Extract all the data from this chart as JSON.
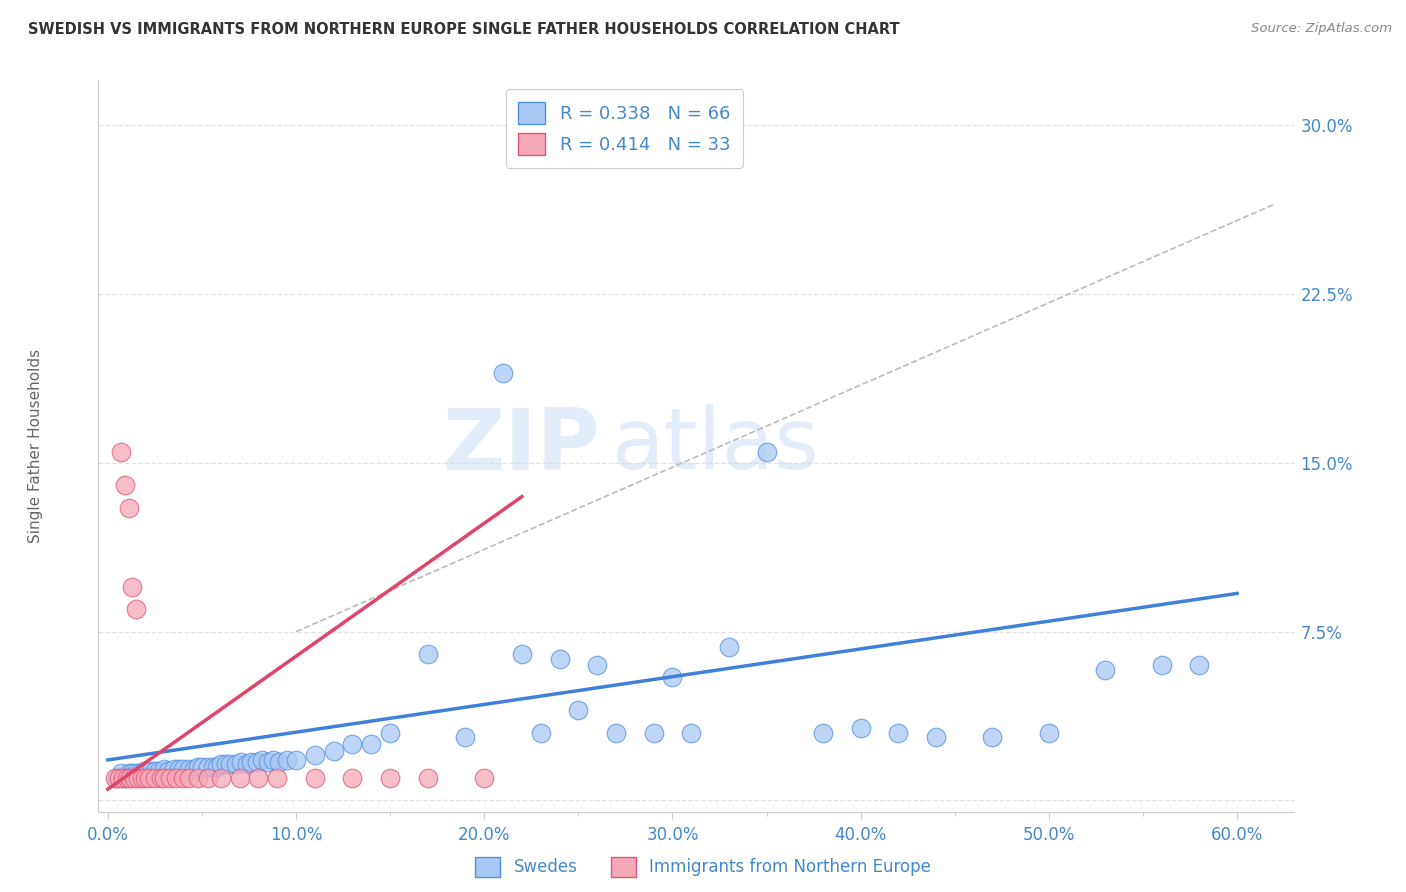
{
  "title": "SWEDISH VS IMMIGRANTS FROM NORTHERN EUROPE SINGLE FATHER HOUSEHOLDS CORRELATION CHART",
  "source": "Source: ZipAtlas.com",
  "ylabel_label": "Single Father Households",
  "xlim": [
    -0.005,
    0.63
  ],
  "ylim": [
    -0.005,
    0.32
  ],
  "yticks": [
    0.0,
    0.075,
    0.15,
    0.225,
    0.3
  ],
  "xticks": [
    0.0,
    0.1,
    0.2,
    0.3,
    0.4,
    0.5,
    0.6
  ],
  "ytick_labels": [
    "",
    "7.5%",
    "15.0%",
    "22.5%",
    "30.0%"
  ],
  "xtick_labels": [
    "0.0%",
    "10.0%",
    "20.0%",
    "30.0%",
    "40.0%",
    "50.0%",
    "60.0%"
  ],
  "blue_R": "0.338",
  "blue_N": "66",
  "pink_R": "0.414",
  "pink_N": "33",
  "legend_labels": [
    "Swedes",
    "Immigrants from Northern Europe"
  ],
  "blue_color": "#a8c8f5",
  "pink_color": "#f5a8b8",
  "blue_edge_color": "#5090e0",
  "pink_edge_color": "#e05575",
  "blue_line_color": "#4080d8",
  "pink_line_color": "#e04468",
  "axis_label_color": "#4488cc",
  "title_color": "#333333",
  "source_color": "#888888",
  "grid_color": "#e0e0e0",
  "background_color": "#ffffff",
  "blue_scatter_x": [
    0.005,
    0.007,
    0.009,
    0.011,
    0.013,
    0.015,
    0.017,
    0.019,
    0.021,
    0.023,
    0.025,
    0.027,
    0.03,
    0.032,
    0.035,
    0.038,
    0.04,
    0.043,
    0.046,
    0.048,
    0.05,
    0.053,
    0.056,
    0.058,
    0.06,
    0.063,
    0.065,
    0.068,
    0.071,
    0.074,
    0.076,
    0.079,
    0.082,
    0.085,
    0.088,
    0.091,
    0.095,
    0.1,
    0.11,
    0.12,
    0.13,
    0.14,
    0.15,
    0.17,
    0.19,
    0.21,
    0.23,
    0.25,
    0.27,
    0.29,
    0.31,
    0.33,
    0.35,
    0.38,
    0.4,
    0.42,
    0.44,
    0.47,
    0.5,
    0.53,
    0.56,
    0.58,
    0.22,
    0.24,
    0.26,
    0.3
  ],
  "blue_scatter_y": [
    0.01,
    0.012,
    0.01,
    0.012,
    0.012,
    0.012,
    0.012,
    0.013,
    0.013,
    0.013,
    0.013,
    0.013,
    0.014,
    0.013,
    0.014,
    0.014,
    0.014,
    0.014,
    0.014,
    0.015,
    0.015,
    0.015,
    0.015,
    0.015,
    0.016,
    0.016,
    0.016,
    0.016,
    0.017,
    0.016,
    0.017,
    0.017,
    0.018,
    0.017,
    0.018,
    0.017,
    0.018,
    0.018,
    0.02,
    0.022,
    0.025,
    0.025,
    0.03,
    0.065,
    0.028,
    0.19,
    0.03,
    0.04,
    0.03,
    0.03,
    0.03,
    0.068,
    0.155,
    0.03,
    0.032,
    0.03,
    0.028,
    0.028,
    0.03,
    0.058,
    0.06,
    0.06,
    0.065,
    0.063,
    0.06,
    0.055
  ],
  "pink_scatter_x": [
    0.004,
    0.006,
    0.008,
    0.01,
    0.012,
    0.014,
    0.016,
    0.018,
    0.02,
    0.022,
    0.025,
    0.028,
    0.03,
    0.033,
    0.036,
    0.04,
    0.043,
    0.048,
    0.053,
    0.06,
    0.07,
    0.08,
    0.09,
    0.11,
    0.13,
    0.15,
    0.17,
    0.2,
    0.007,
    0.009,
    0.011,
    0.013,
    0.015
  ],
  "pink_scatter_y": [
    0.01,
    0.01,
    0.01,
    0.01,
    0.01,
    0.01,
    0.01,
    0.01,
    0.01,
    0.01,
    0.01,
    0.01,
    0.01,
    0.01,
    0.01,
    0.01,
    0.01,
    0.01,
    0.01,
    0.01,
    0.01,
    0.01,
    0.01,
    0.01,
    0.01,
    0.01,
    0.01,
    0.01,
    0.155,
    0.14,
    0.13,
    0.095,
    0.085
  ],
  "blue_line_x": [
    0.0,
    0.6
  ],
  "blue_line_y": [
    0.018,
    0.092
  ],
  "pink_line_x": [
    0.0,
    0.22
  ],
  "pink_line_y": [
    0.005,
    0.135
  ],
  "dashed_line_x": [
    0.1,
    0.62
  ],
  "dashed_line_y": [
    0.075,
    0.265
  ],
  "watermark1": "ZIP",
  "watermark2": "atlas"
}
